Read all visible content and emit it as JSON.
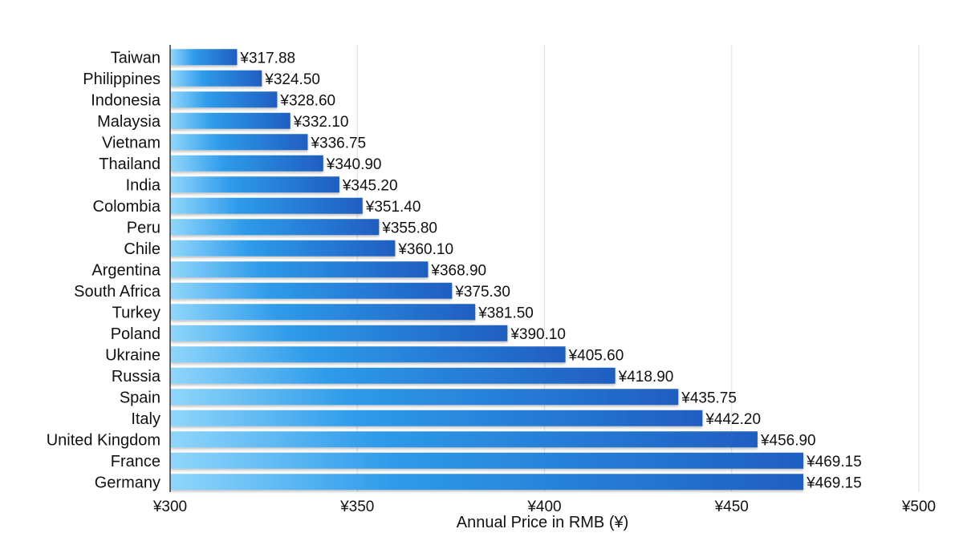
{
  "chart_data": {
    "type": "bar",
    "orientation": "horizontal",
    "title": "",
    "xlabel": "Annual Price in RMB (¥)",
    "ylabel": "",
    "xlim": [
      300,
      500
    ],
    "grid": true,
    "value_prefix": "¥",
    "categories": [
      "Taiwan",
      "Philippines",
      "Indonesia",
      "Malaysia",
      "Vietnam",
      "Thailand",
      "India",
      "Colombia",
      "Peru",
      "Chile",
      "Argentina",
      "South Africa",
      "Turkey",
      "Poland",
      "Ukraine",
      "Russia",
      "Spain",
      "Italy",
      "United Kingdom",
      "France",
      "Germany"
    ],
    "values": [
      317.88,
      324.5,
      328.6,
      332.1,
      336.75,
      340.9,
      345.2,
      351.4,
      355.8,
      360.1,
      368.9,
      375.3,
      381.5,
      390.1,
      405.6,
      418.9,
      435.75,
      442.2,
      456.9,
      469.15,
      469.15
    ],
    "value_labels": [
      "¥317.88",
      "¥324.50",
      "¥328.60",
      "¥332.10",
      "¥336.75",
      "¥340.90",
      "¥345.20",
      "¥351.40",
      "¥355.80",
      "¥360.10",
      "¥368.90",
      "¥375.30",
      "¥381.50",
      "¥390.10",
      "¥405.60",
      "¥418.90",
      "¥435.75",
      "¥442.20",
      "¥456.90",
      "¥469.15",
      "¥469.15"
    ],
    "x_ticks": [
      300,
      350,
      400,
      450,
      500
    ],
    "x_tick_labels": [
      "¥300",
      "¥350",
      "¥400",
      "¥450",
      "¥500"
    ],
    "bar_gradient": [
      "#8fd6fb",
      "#2e9bea",
      "#1f5ec1"
    ],
    "grid_color": "#e3e3e3",
    "axis_color": "#333333",
    "text_color": "#111111"
  }
}
